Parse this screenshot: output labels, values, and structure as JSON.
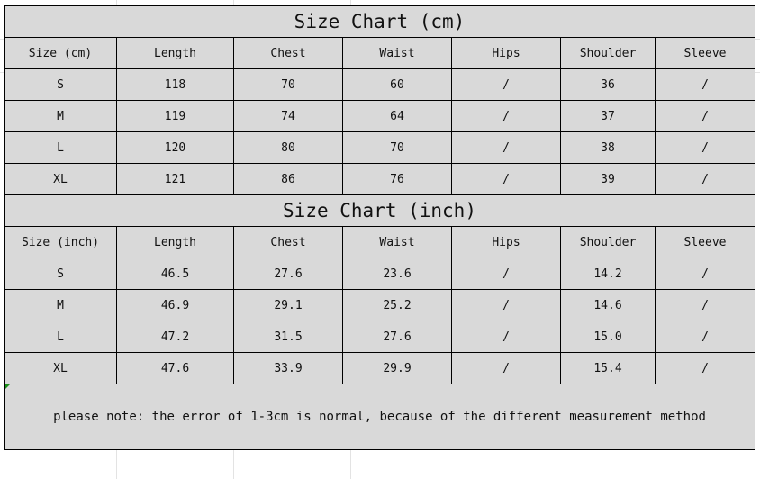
{
  "cm_table": {
    "title": "Size Chart (cm)",
    "headers": [
      "Size (cm)",
      "Length",
      "Chest",
      "Waist",
      "Hips",
      "Shoulder",
      "Sleeve"
    ],
    "rows": [
      [
        "S",
        "118",
        "70",
        "60",
        "/",
        "36",
        "/"
      ],
      [
        "M",
        "119",
        "74",
        "64",
        "/",
        "37",
        "/"
      ],
      [
        "L",
        "120",
        "80",
        "70",
        "/",
        "38",
        "/"
      ],
      [
        "XL",
        "121",
        "86",
        "76",
        "/",
        "39",
        "/"
      ]
    ]
  },
  "inch_table": {
    "title": "Size Chart (inch)",
    "headers": [
      "Size (inch)",
      "Length",
      "Chest",
      "Waist",
      "Hips",
      "Shoulder",
      "Sleeve"
    ],
    "rows": [
      [
        "S",
        "46.5",
        "27.6",
        "23.6",
        "/",
        "14.2",
        "/"
      ],
      [
        "M",
        "46.9",
        "29.1",
        "25.2",
        "/",
        "14.6",
        "/"
      ],
      [
        "L",
        "47.2",
        "31.5",
        "27.6",
        "/",
        "15.0",
        "/"
      ],
      [
        "XL",
        "47.6",
        "33.9",
        "29.9",
        "/",
        "15.4",
        "/"
      ]
    ]
  },
  "note": "please note: the error of 1-3cm is normal, because of the different measurement method",
  "colors": {
    "cell_fill": "#d9d9d9",
    "border": "#000000",
    "comment_marker": "#1a8f1a"
  }
}
